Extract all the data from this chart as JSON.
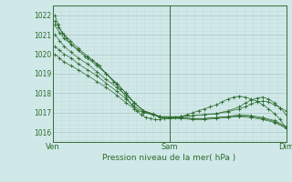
{
  "xlabel": "Pression niveau de la mer( hPa )",
  "bg_color": "#d0e8e8",
  "grid_color_major": "#b0cccc",
  "grid_color_minor": "#c0dddd",
  "line_color": "#2d6b2d",
  "ylim": [
    1015.5,
    1022.5
  ],
  "yticks": [
    1016,
    1017,
    1018,
    1019,
    1020,
    1021,
    1022
  ],
  "xtick_positions": [
    0.0,
    1.0,
    2.0
  ],
  "xtick_labels": [
    "Ven",
    "Sam",
    "Dim"
  ],
  "series": [
    {
      "x": [
        0.02,
        0.06,
        0.1,
        0.16,
        0.22,
        0.3,
        0.38,
        0.46,
        0.55,
        0.63,
        0.7,
        0.78,
        0.86,
        0.92,
        1.0,
        1.1,
        1.2,
        1.3,
        1.4,
        1.5,
        1.6,
        1.7,
        1.8,
        1.9,
        2.0
      ],
      "y": [
        1021.5,
        1021.1,
        1020.8,
        1020.5,
        1020.2,
        1019.8,
        1019.4,
        1019.0,
        1018.5,
        1018.0,
        1017.5,
        1017.1,
        1016.9,
        1016.75,
        1016.7,
        1016.7,
        1016.65,
        1016.65,
        1016.7,
        1016.75,
        1016.8,
        1016.75,
        1016.65,
        1016.5,
        1016.2
      ]
    },
    {
      "x": [
        0.02,
        0.06,
        0.1,
        0.16,
        0.22,
        0.3,
        0.38,
        0.46,
        0.55,
        0.63,
        0.7,
        0.78,
        0.86,
        0.92,
        1.0,
        1.1,
        1.2,
        1.3,
        1.4,
        1.5,
        1.6,
        1.7,
        1.8,
        1.9,
        2.0
      ],
      "y": [
        1021.0,
        1020.7,
        1020.4,
        1020.1,
        1019.8,
        1019.5,
        1019.1,
        1018.7,
        1018.3,
        1017.9,
        1017.5,
        1017.1,
        1016.95,
        1016.8,
        1016.75,
        1016.75,
        1016.7,
        1016.7,
        1016.75,
        1016.8,
        1016.85,
        1016.8,
        1016.7,
        1016.55,
        1016.25
      ]
    },
    {
      "x": [
        0.02,
        0.06,
        0.1,
        0.16,
        0.22,
        0.3,
        0.38,
        0.46,
        0.55,
        0.63,
        0.7,
        0.78,
        0.86,
        0.92,
        1.0,
        1.1,
        1.2,
        1.3,
        1.4,
        1.5,
        1.6,
        1.7,
        1.8,
        1.9,
        2.0
      ],
      "y": [
        1020.4,
        1020.2,
        1020.0,
        1019.8,
        1019.5,
        1019.2,
        1018.9,
        1018.5,
        1018.1,
        1017.7,
        1017.3,
        1017.05,
        1016.9,
        1016.8,
        1016.75,
        1016.75,
        1016.7,
        1016.7,
        1016.75,
        1016.8,
        1016.9,
        1016.85,
        1016.75,
        1016.6,
        1016.3
      ]
    },
    {
      "x": [
        0.02,
        0.06,
        0.1,
        0.16,
        0.22,
        0.3,
        0.38,
        0.46,
        0.55,
        0.63,
        0.7,
        0.78,
        0.86,
        0.92,
        1.0,
        1.1,
        1.2,
        1.3,
        1.4,
        1.5,
        1.6,
        1.65,
        1.7,
        1.75,
        1.8,
        1.85,
        1.9,
        1.95,
        2.0
      ],
      "y": [
        1020.0,
        1019.8,
        1019.6,
        1019.4,
        1019.2,
        1018.9,
        1018.6,
        1018.3,
        1017.9,
        1017.5,
        1017.2,
        1017.0,
        1016.9,
        1016.8,
        1016.8,
        1016.8,
        1016.85,
        1016.9,
        1016.95,
        1017.05,
        1017.2,
        1017.3,
        1017.45,
        1017.55,
        1017.6,
        1017.55,
        1017.4,
        1017.25,
        1017.1
      ]
    },
    {
      "x": [
        0.02,
        0.05,
        0.1,
        0.15,
        0.22,
        0.3,
        0.38,
        0.46,
        0.55,
        0.63,
        0.7,
        0.78,
        0.86,
        0.92,
        1.0,
        1.1,
        1.2,
        1.3,
        1.4,
        1.5,
        1.6,
        1.65,
        1.7,
        1.75,
        1.8,
        1.85,
        1.9,
        1.95,
        2.0
      ],
      "y": [
        1021.7,
        1021.4,
        1021.0,
        1020.7,
        1020.3,
        1019.9,
        1019.5,
        1019.0,
        1018.5,
        1018.0,
        1017.5,
        1017.1,
        1016.9,
        1016.8,
        1016.75,
        1016.8,
        1016.85,
        1016.9,
        1016.95,
        1017.1,
        1017.3,
        1017.5,
        1017.65,
        1017.75,
        1017.8,
        1017.7,
        1017.5,
        1017.25,
        1016.9
      ]
    },
    {
      "x": [
        0.02,
        0.05,
        0.08,
        0.12,
        0.16,
        0.22,
        0.28,
        0.34,
        0.4,
        0.46,
        0.52,
        0.58,
        0.63,
        0.68,
        0.72,
        0.76,
        0.8,
        0.84,
        0.88,
        0.92,
        0.96,
        1.0,
        1.05,
        1.1,
        1.15,
        1.2,
        1.25,
        1.3,
        1.35,
        1.4,
        1.45,
        1.5,
        1.55,
        1.6,
        1.65,
        1.7,
        1.75,
        1.8,
        1.85,
        1.9,
        1.95,
        2.0
      ],
      "y": [
        1022.0,
        1021.5,
        1021.1,
        1020.8,
        1020.5,
        1020.2,
        1019.9,
        1019.7,
        1019.4,
        1019.0,
        1018.6,
        1018.2,
        1017.8,
        1017.4,
        1017.1,
        1016.9,
        1016.75,
        1016.7,
        1016.65,
        1016.65,
        1016.7,
        1016.7,
        1016.75,
        1016.8,
        1016.9,
        1017.0,
        1017.1,
        1017.2,
        1017.3,
        1017.4,
        1017.55,
        1017.7,
        1017.8,
        1017.85,
        1017.8,
        1017.7,
        1017.6,
        1017.4,
        1017.2,
        1016.95,
        1016.65,
        1016.2
      ]
    }
  ]
}
